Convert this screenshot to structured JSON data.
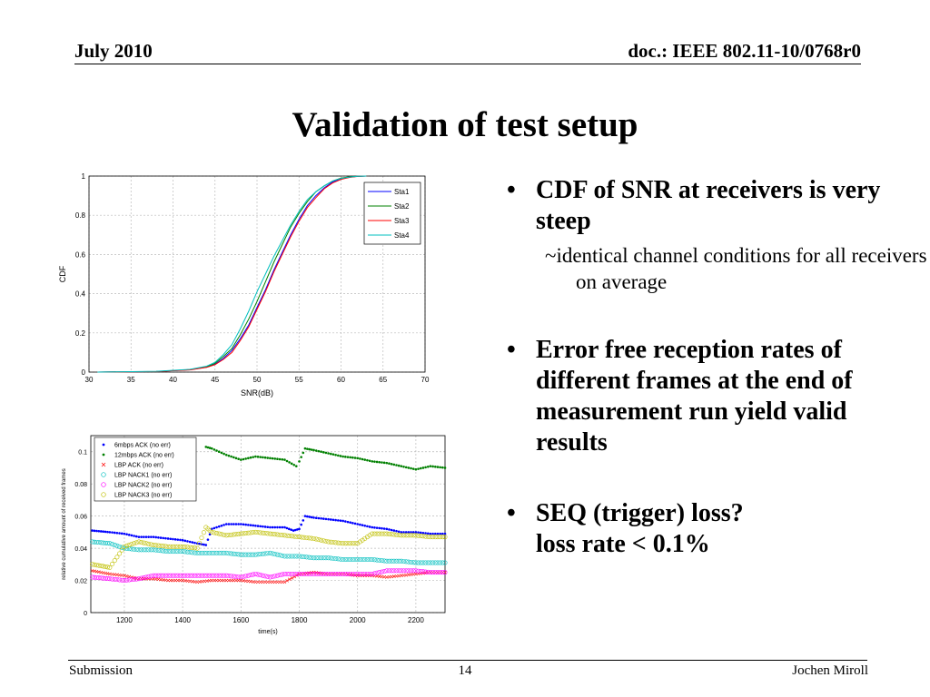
{
  "header": {
    "left": "July 2010",
    "right": "doc.: IEEE 802.11-10/0768r0"
  },
  "title": "Validation of test setup",
  "bullets": [
    {
      "text": "CDF of SNR at receivers is very steep",
      "sub": "~identical channel conditions for all receivers on average"
    },
    {
      "text": "Error free reception rates of different frames at the end of measurement run yield valid results"
    },
    {
      "text": "SEQ (trigger) loss?",
      "text2": "loss rate < 0.1%"
    }
  ],
  "footer": {
    "left": "Submission",
    "page": "14",
    "right": "Jochen Miroll"
  },
  "chart_data": [
    {
      "type": "line",
      "xlabel": "SNR(dB)",
      "ylabel": "CDF",
      "xlim": [
        30,
        70
      ],
      "ylim": [
        0,
        1
      ],
      "xticks": [
        30,
        35,
        40,
        45,
        50,
        55,
        60,
        65,
        70
      ],
      "yticks": [
        0,
        0.2,
        0.4,
        0.6,
        0.8,
        1
      ],
      "grid": true,
      "legend": "top-right",
      "series": [
        {
          "name": "Sta1",
          "color": "#0000ff",
          "x": [
            31,
            38,
            42,
            44,
            45,
            46,
            47,
            48,
            49,
            50,
            51,
            52,
            53,
            54,
            55,
            56,
            57,
            58,
            59,
            60,
            61,
            62,
            63
          ],
          "y": [
            0,
            0.003,
            0.012,
            0.025,
            0.04,
            0.07,
            0.11,
            0.17,
            0.24,
            0.33,
            0.42,
            0.52,
            0.61,
            0.7,
            0.78,
            0.85,
            0.9,
            0.94,
            0.97,
            0.985,
            0.994,
            0.999,
            1
          ]
        },
        {
          "name": "Sta2",
          "color": "#008000",
          "x": [
            31,
            38,
            42,
            44,
            45,
            46,
            47,
            48,
            49,
            50,
            51,
            52,
            53,
            54,
            55,
            56,
            57,
            58,
            59,
            60,
            61,
            62,
            63
          ],
          "y": [
            0,
            0.003,
            0.013,
            0.027,
            0.045,
            0.08,
            0.12,
            0.19,
            0.27,
            0.36,
            0.46,
            0.56,
            0.65,
            0.74,
            0.81,
            0.87,
            0.92,
            0.95,
            0.975,
            0.99,
            0.996,
            0.999,
            1
          ]
        },
        {
          "name": "Sta3",
          "color": "#ff0000",
          "x": [
            31,
            38,
            42,
            44,
            45,
            46,
            47,
            48,
            49,
            50,
            51,
            52,
            53,
            54,
            55,
            56,
            57,
            58,
            59,
            60,
            61,
            62,
            63
          ],
          "y": [
            0,
            0.003,
            0.011,
            0.024,
            0.038,
            0.065,
            0.1,
            0.16,
            0.23,
            0.32,
            0.41,
            0.51,
            0.6,
            0.69,
            0.77,
            0.84,
            0.89,
            0.935,
            0.965,
            0.983,
            0.993,
            0.998,
            1
          ]
        },
        {
          "name": "Sta4",
          "color": "#00bfbf",
          "x": [
            31,
            38,
            42,
            44,
            45,
            46,
            47,
            48,
            49,
            50,
            51,
            52,
            53,
            54,
            55,
            56,
            57,
            58,
            59,
            60,
            61,
            62,
            63
          ],
          "y": [
            0,
            0.004,
            0.014,
            0.03,
            0.05,
            0.09,
            0.14,
            0.22,
            0.31,
            0.41,
            0.5,
            0.59,
            0.67,
            0.75,
            0.82,
            0.88,
            0.92,
            0.95,
            0.975,
            0.988,
            0.995,
            0.999,
            1
          ]
        }
      ]
    },
    {
      "type": "scatter",
      "xlabel": "time(s)",
      "ylabel": "relative cumulative amount of received frames",
      "xlim": [
        1085,
        2300
      ],
      "ylim": [
        0,
        0.11
      ],
      "xticks": [
        1200,
        1400,
        1600,
        1800,
        2000,
        2200
      ],
      "yticks": [
        0,
        0.02,
        0.04,
        0.06,
        0.08,
        0.1
      ],
      "grid": true,
      "legend": "top-left",
      "series": [
        {
          "name": "6mbps ACK (no err)",
          "color": "#0000ff",
          "marker": "dot",
          "x": [
            1090,
            1150,
            1200,
            1250,
            1300,
            1350,
            1400,
            1450,
            1480,
            1500,
            1550,
            1600,
            1650,
            1700,
            1750,
            1780,
            1800,
            1820,
            1850,
            1900,
            1950,
            2000,
            2050,
            2100,
            2150,
            2200,
            2250,
            2300
          ],
          "y": [
            0.051,
            0.05,
            0.049,
            0.047,
            0.047,
            0.046,
            0.045,
            0.043,
            0.042,
            0.052,
            0.055,
            0.055,
            0.054,
            0.053,
            0.053,
            0.051,
            0.052,
            0.06,
            0.059,
            0.058,
            0.057,
            0.055,
            0.053,
            0.052,
            0.05,
            0.05,
            0.049,
            0.049
          ]
        },
        {
          "name": "12mbps ACK (no err)",
          "color": "#008000",
          "marker": "dot",
          "x": [
            1480,
            1500,
            1550,
            1600,
            1650,
            1700,
            1750,
            1790,
            1800,
            1820,
            1850,
            1900,
            1950,
            2000,
            2050,
            2100,
            2150,
            2200,
            2250,
            2300
          ],
          "y": [
            0.103,
            0.102,
            0.098,
            0.095,
            0.097,
            0.096,
            0.095,
            0.091,
            0.094,
            0.102,
            0.101,
            0.099,
            0.097,
            0.096,
            0.094,
            0.093,
            0.091,
            0.089,
            0.091,
            0.09
          ]
        },
        {
          "name": "LBP ACK (no err)",
          "color": "#ff0000",
          "marker": "x",
          "x": [
            1090,
            1150,
            1200,
            1250,
            1300,
            1350,
            1400,
            1450,
            1500,
            1550,
            1600,
            1650,
            1700,
            1750,
            1800,
            1850,
            1900,
            1950,
            2000,
            2050,
            2100,
            2150,
            2200,
            2250,
            2300
          ],
          "y": [
            0.026,
            0.024,
            0.023,
            0.021,
            0.021,
            0.02,
            0.02,
            0.019,
            0.02,
            0.02,
            0.02,
            0.019,
            0.019,
            0.019,
            0.024,
            0.025,
            0.024,
            0.024,
            0.023,
            0.023,
            0.022,
            0.023,
            0.024,
            0.025,
            0.025
          ]
        },
        {
          "name": "LBP NACK1 (no err)",
          "color": "#00bfbf",
          "marker": "circle",
          "x": [
            1090,
            1150,
            1200,
            1250,
            1300,
            1350,
            1400,
            1450,
            1500,
            1550,
            1600,
            1650,
            1700,
            1750,
            1800,
            1850,
            1900,
            1950,
            2000,
            2050,
            2100,
            2150,
            2200,
            2250,
            2300
          ],
          "y": [
            0.044,
            0.043,
            0.04,
            0.039,
            0.039,
            0.038,
            0.038,
            0.037,
            0.037,
            0.037,
            0.036,
            0.036,
            0.037,
            0.035,
            0.035,
            0.034,
            0.034,
            0.033,
            0.033,
            0.033,
            0.032,
            0.032,
            0.031,
            0.031,
            0.031
          ]
        },
        {
          "name": "LBP NACK2 (no err)",
          "color": "#ff00ff",
          "marker": "circle",
          "x": [
            1090,
            1150,
            1200,
            1250,
            1300,
            1350,
            1400,
            1450,
            1500,
            1550,
            1600,
            1650,
            1700,
            1750,
            1800,
            1850,
            1900,
            1950,
            2000,
            2050,
            2100,
            2150,
            2200,
            2250,
            2300
          ],
          "y": [
            0.022,
            0.021,
            0.02,
            0.021,
            0.023,
            0.023,
            0.023,
            0.023,
            0.023,
            0.023,
            0.022,
            0.024,
            0.022,
            0.024,
            0.024,
            0.024,
            0.024,
            0.024,
            0.024,
            0.024,
            0.026,
            0.026,
            0.026,
            0.025,
            0.025
          ]
        },
        {
          "name": "LBP NACK3 (no err)",
          "color": "#bfbf00",
          "marker": "circle",
          "x": [
            1090,
            1150,
            1200,
            1250,
            1300,
            1350,
            1400,
            1450,
            1480,
            1500,
            1550,
            1600,
            1650,
            1700,
            1750,
            1800,
            1850,
            1900,
            1950,
            2000,
            2050,
            2100,
            2150,
            2200,
            2250,
            2300
          ],
          "y": [
            0.03,
            0.028,
            0.041,
            0.044,
            0.042,
            0.041,
            0.041,
            0.04,
            0.053,
            0.05,
            0.048,
            0.049,
            0.05,
            0.049,
            0.048,
            0.047,
            0.046,
            0.044,
            0.043,
            0.043,
            0.049,
            0.049,
            0.048,
            0.048,
            0.047,
            0.047
          ]
        }
      ]
    }
  ]
}
